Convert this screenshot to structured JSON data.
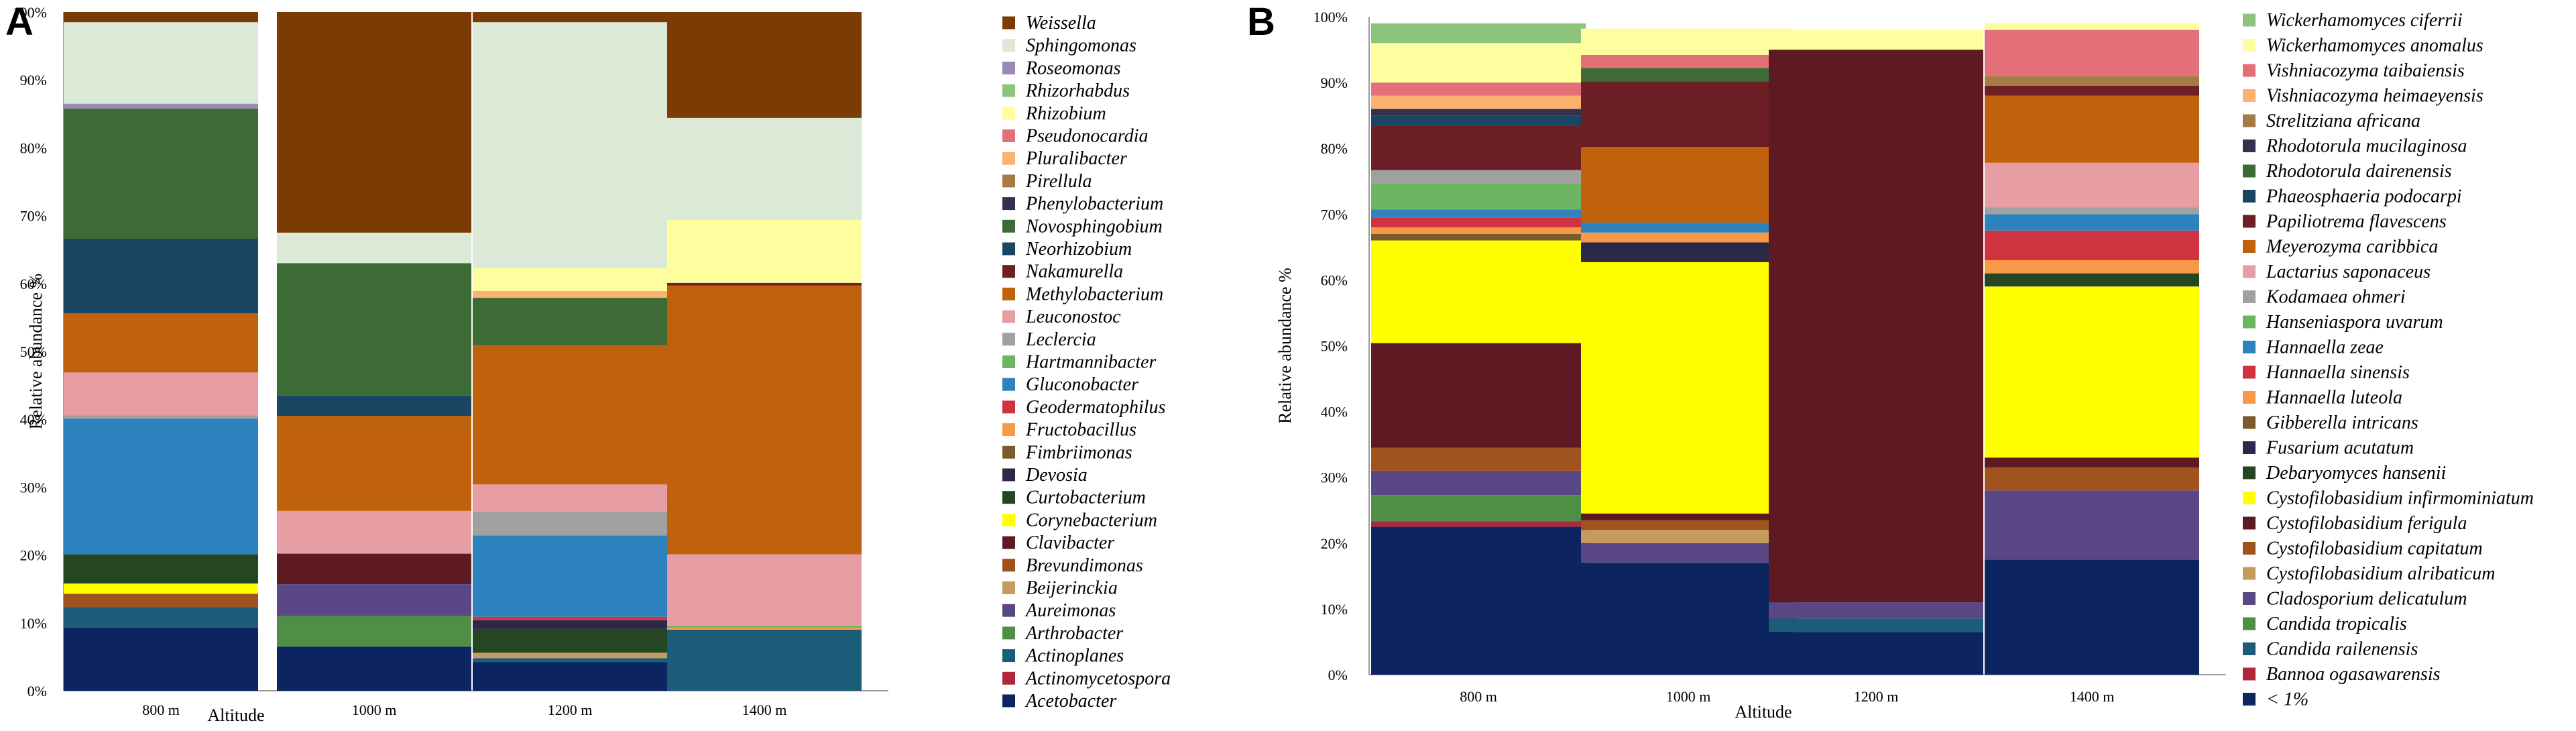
{
  "chart_data": [
    {
      "panel": "A",
      "type": "stacked-bar",
      "xlabel": "Altitude",
      "ylabel": "Relative abundance %",
      "ylim": [
        0,
        100
      ],
      "yticks": [
        "0%",
        "10%",
        "20%",
        "30%",
        "40%",
        "50%",
        "60%",
        "70%",
        "80%",
        "90%",
        "100%"
      ],
      "categories": [
        "800 m",
        "1000 m",
        "1200 m",
        "1400 m"
      ],
      "series": [
        {
          "name": "Acetobacter",
          "color": "#0c2460",
          "values": [
            9.3,
            6.5,
            4.2,
            0
          ]
        },
        {
          "name": "Actinomycetospora",
          "color": "#b0263a",
          "values": [
            0,
            0,
            0,
            0
          ]
        },
        {
          "name": "Actinoplanes",
          "color": "#1b5c78",
          "values": [
            3,
            0,
            0.6,
            9
          ]
        },
        {
          "name": "Arthrobacter",
          "color": "#4e8f45",
          "values": [
            0,
            4.5,
            0,
            0
          ]
        },
        {
          "name": "Aureimonas",
          "color": "#5a4785",
          "values": [
            0,
            4.7,
            0,
            0
          ]
        },
        {
          "name": "Beijerinckia",
          "color": "#c59b5f",
          "values": [
            0,
            0,
            0.8,
            0
          ]
        },
        {
          "name": "Brevundimonas",
          "color": "#a0531c",
          "values": [
            2,
            0,
            0,
            0
          ]
        },
        {
          "name": "Clavibacter",
          "color": "#5e1a22",
          "values": [
            0,
            4.5,
            0,
            0
          ]
        },
        {
          "name": "Corynebacterium",
          "color": "#ffff00",
          "values": [
            1.5,
            0,
            0,
            0
          ]
        },
        {
          "name": "Curtobacterium",
          "color": "#254622",
          "values": [
            4.3,
            0,
            3.5,
            0
          ]
        },
        {
          "name": "Devosia",
          "color": "#2c2948",
          "values": [
            0,
            0,
            1.3,
            0
          ]
        },
        {
          "name": "Fimbriimonas",
          "color": "#7a5c2c",
          "values": [
            0,
            0,
            0,
            0
          ]
        },
        {
          "name": "Fructobacillus",
          "color": "#f79a47",
          "values": [
            0,
            0,
            0,
            0.3
          ]
        },
        {
          "name": "Geodermatophilus",
          "color": "#cf3340",
          "values": [
            0,
            0,
            0.5,
            0
          ]
        },
        {
          "name": "Gluconobacter",
          "color": "#2e83bf",
          "values": [
            20,
            0,
            12,
            0
          ]
        },
        {
          "name": "Hartmannibacter",
          "color": "#6db562",
          "values": [
            0,
            0,
            0,
            0.3
          ]
        },
        {
          "name": "Leclercia",
          "color": "#a0a0a0",
          "values": [
            0.5,
            0,
            3.5,
            0
          ]
        },
        {
          "name": "Leuconostoc",
          "color": "#e69ea3",
          "values": [
            6.3,
            6.3,
            4,
            10.5
          ]
        },
        {
          "name": "Methylobacterium",
          "color": "#c0620d",
          "values": [
            8.7,
            14,
            20.5,
            39.6
          ]
        },
        {
          "name": "Nakamurella",
          "color": "#6c1f24",
          "values": [
            0,
            0,
            0,
            0.4
          ]
        },
        {
          "name": "Neorhizobium",
          "color": "#1a4563",
          "values": [
            11,
            3,
            0,
            0
          ]
        },
        {
          "name": "Novosphingobium",
          "color": "#3c6b35",
          "values": [
            19.2,
            19.5,
            7,
            0
          ]
        },
        {
          "name": "Phenylobacterium",
          "color": "#34304f",
          "values": [
            0,
            0,
            0,
            0
          ]
        },
        {
          "name": "Pirellula",
          "color": "#a57a45",
          "values": [
            0,
            0,
            0,
            0
          ]
        },
        {
          "name": "Pluralibacter",
          "color": "#fbb16f",
          "values": [
            0,
            0,
            1,
            0
          ]
        },
        {
          "name": "Pseudonocardia",
          "color": "#e37079",
          "values": [
            0,
            0,
            0,
            0
          ]
        },
        {
          "name": "Rhizobium",
          "color": "#fffe9e",
          "values": [
            0,
            0,
            3.4,
            9.3
          ]
        },
        {
          "name": "Rhizorhabdus",
          "color": "#8dc47c",
          "values": [
            0,
            0,
            0,
            0
          ]
        },
        {
          "name": "Roseomonas",
          "color": "#9a88b8",
          "values": [
            0.7,
            0,
            0,
            0
          ]
        },
        {
          "name": "Sphingomonas",
          "color": "#dbe9d6",
          "values": [
            12,
            4.5,
            36.2,
            15
          ]
        },
        {
          "name": "Weissella",
          "color": "#7a3c03",
          "values": [
            1.5,
            32.5,
            1.5,
            15.6
          ]
        }
      ]
    },
    {
      "panel": "B",
      "type": "stacked-bar",
      "xlabel": "Altitude",
      "ylabel": "Relative abundance %",
      "ylim": [
        0,
        100
      ],
      "yticks": [
        "0%",
        "10%",
        "20%",
        "30%",
        "40%",
        "50%",
        "60%",
        "70%",
        "80%",
        "90%",
        "100%"
      ],
      "categories": [
        "800 m",
        "1000 m",
        "1200 m",
        "1400 m"
      ],
      "series": [
        {
          "name": "< 1%",
          "color": "#0c2460",
          "values": [
            22.5,
            17,
            6.5,
            17.5
          ]
        },
        {
          "name": "Bannoa ogasawarensis",
          "color": "#b0263a",
          "values": [
            0.8,
            0,
            0,
            0
          ]
        },
        {
          "name": "Candida railenensis",
          "color": "#1b5c78",
          "values": [
            0,
            0,
            2,
            0
          ]
        },
        {
          "name": "Candida tropicalis",
          "color": "#4e8f45",
          "values": [
            4,
            0,
            0,
            0
          ]
        },
        {
          "name": "Cladosporium delicatulum",
          "color": "#5a4785",
          "values": [
            3.7,
            3,
            2.5,
            10.5
          ]
        },
        {
          "name": "Cystofilobasidium alribaticum",
          "color": "#c59b5f",
          "values": [
            0,
            2,
            0,
            0
          ]
        },
        {
          "name": "Cystofilobasidium capitatum",
          "color": "#a0531c",
          "values": [
            3.5,
            1.5,
            0,
            3.5
          ]
        },
        {
          "name": "Cystofilobasidium ferigula",
          "color": "#5e1a22",
          "values": [
            15.9,
            1,
            84,
            1.5
          ]
        },
        {
          "name": "Cystofilobasidium infirmominiatum",
          "color": "#ffff00",
          "values": [
            15.6,
            38.2,
            0,
            26
          ]
        },
        {
          "name": "Debaryomyces hansenii",
          "color": "#254622",
          "values": [
            0,
            0,
            0,
            2
          ]
        },
        {
          "name": "Fusarium acutatum",
          "color": "#2c2948",
          "values": [
            0,
            3,
            0,
            0
          ]
        },
        {
          "name": "Gibberella intricans",
          "color": "#7a5c2c",
          "values": [
            1,
            0,
            0,
            0
          ]
        },
        {
          "name": "Hannaella luteola",
          "color": "#f79a47",
          "values": [
            1,
            1.5,
            0,
            2
          ]
        },
        {
          "name": "Hannaella sinensis",
          "color": "#cf3340",
          "values": [
            1.5,
            0,
            0,
            4.5
          ]
        },
        {
          "name": "Hannaella zeae",
          "color": "#2e83bf",
          "values": [
            1.2,
            1.5,
            0,
            2.5
          ]
        },
        {
          "name": "Hanseniaspora uvarum",
          "color": "#6db562",
          "values": [
            4,
            0,
            0,
            0
          ]
        },
        {
          "name": "Kodamaea ohmeri",
          "color": "#a0a0a0",
          "values": [
            2,
            0,
            0,
            1
          ]
        },
        {
          "name": "Lactarius saponaceus",
          "color": "#e69ea3",
          "values": [
            0,
            0,
            0,
            6.8
          ]
        },
        {
          "name": "Meyerozyma caribbica",
          "color": "#c0620d",
          "values": [
            0,
            11.5,
            0,
            10.2
          ]
        },
        {
          "name": "Papiliotrema flavescens",
          "color": "#6c1f24",
          "values": [
            6.8,
            10,
            0,
            1.5
          ]
        },
        {
          "name": "Phaeosphaeria podocarpi",
          "color": "#1a4563",
          "values": [
            1.5,
            0,
            0,
            0
          ]
        },
        {
          "name": "Rhodotorula dairenensis",
          "color": "#3c6b35",
          "values": [
            0,
            2,
            0,
            0
          ]
        },
        {
          "name": "Rhodotorula mucilaginosa",
          "color": "#34304f",
          "values": [
            1,
            0,
            0,
            0
          ]
        },
        {
          "name": "Strelitziana africana",
          "color": "#a57a45",
          "values": [
            0,
            0,
            0,
            1.5
          ]
        },
        {
          "name": "Vishniacozyma heimaeyensis",
          "color": "#fbb16f",
          "values": [
            2,
            0,
            0,
            0
          ]
        },
        {
          "name": "Vishniacozyma taibaiensis",
          "color": "#e37079",
          "values": [
            2,
            2,
            0,
            7
          ]
        },
        {
          "name": "Wickerhamomyces anomalus",
          "color": "#fffe9e",
          "values": [
            6,
            4,
            3,
            1
          ]
        },
        {
          "name": "Wickerhamomyces ciferrii",
          "color": "#8dc47c",
          "values": [
            3,
            0,
            0,
            0
          ]
        }
      ]
    }
  ]
}
